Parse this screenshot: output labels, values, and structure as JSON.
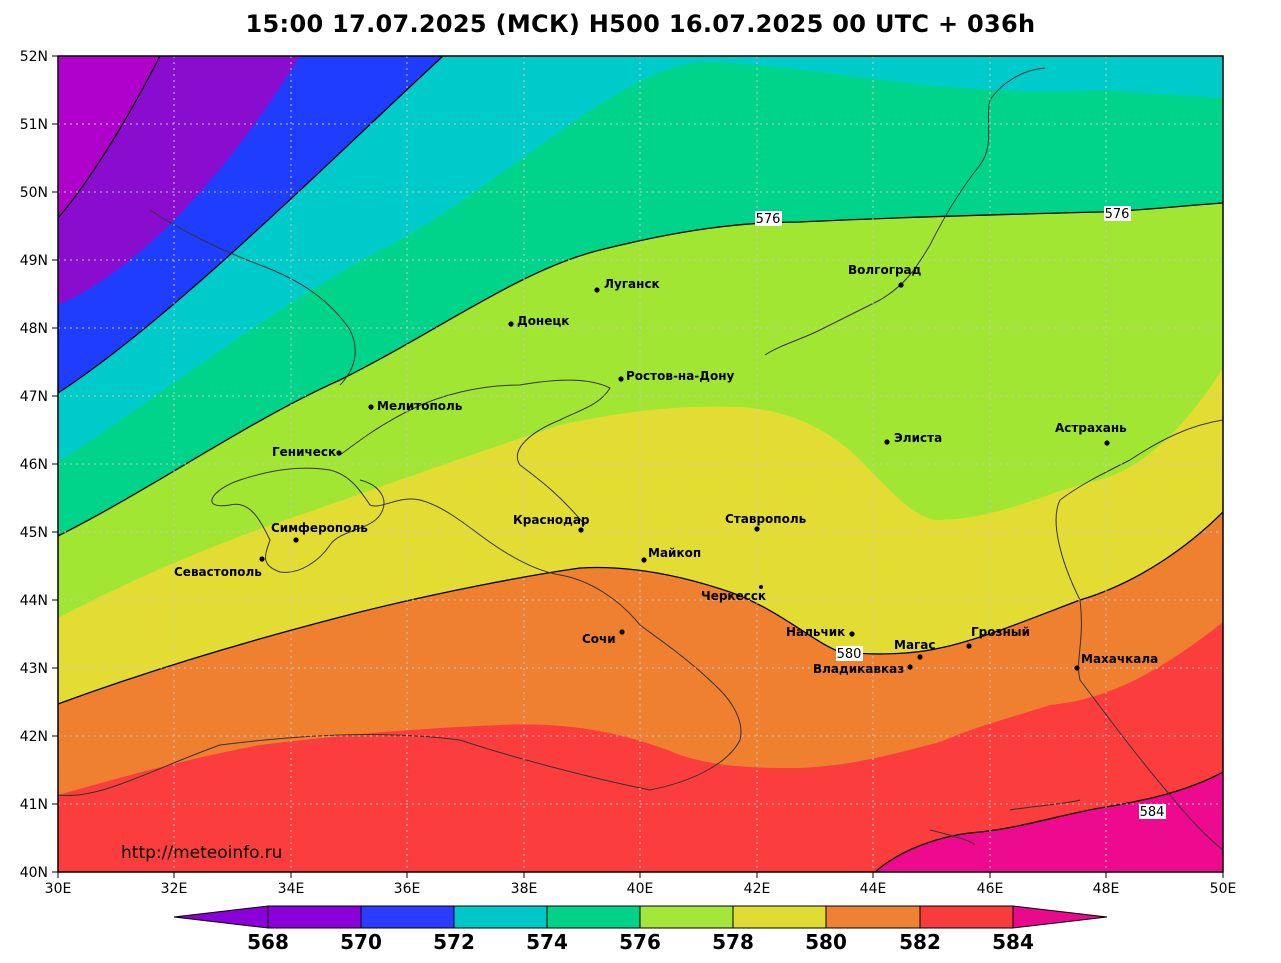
{
  "title": "15:00 17.07.2025 (МСК) H500  16.07.2025 00 UTC + 036h",
  "source_url": "http://meteoinfo.ru",
  "axes": {
    "lat_labels": [
      "52N",
      "51N",
      "50N",
      "49N",
      "48N",
      "47N",
      "46N",
      "45N",
      "44N",
      "43N",
      "42N",
      "41N",
      "40N"
    ],
    "lon_labels": [
      "30E",
      "32E",
      "34E",
      "36E",
      "38E",
      "40E",
      "42E",
      "44E",
      "46E",
      "48E",
      "50E"
    ]
  },
  "palette": {
    "fill_568": "#8a0ccf",
    "fill_570": "#1f3dff",
    "fill_572": "#00cbcb",
    "fill_574": "#00d48b",
    "fill_576": "#a2e634",
    "fill_578": "#e3dd33",
    "fill_580": "#ef8030",
    "fill_582": "#fb3d3d",
    "fill_584": "#ee0a8f",
    "fill_566": "#b000cb"
  },
  "colorbar": {
    "labels": [
      "568",
      "570",
      "572",
      "574",
      "576",
      "578",
      "580",
      "582",
      "584"
    ],
    "colors": [
      "#8a00d8",
      "#2a3cff",
      "#00c8c8",
      "#00d28a",
      "#a4e63a",
      "#e0dc34",
      "#ee8232",
      "#f83c3c",
      "#e80a8c"
    ]
  },
  "contour_labels": [
    "576",
    "576",
    "580",
    "584"
  ],
  "cities": [
    {
      "name": "Волгоград"
    },
    {
      "name": "Луганск"
    },
    {
      "name": "Донецк"
    },
    {
      "name": "Ростов-на-Дону"
    },
    {
      "name": "Мелитополь"
    },
    {
      "name": "Геническ"
    },
    {
      "name": "Элиста"
    },
    {
      "name": "Астрахань"
    },
    {
      "name": "Симферополь"
    },
    {
      "name": "Краснодар"
    },
    {
      "name": "Ставрополь"
    },
    {
      "name": "Севастополь"
    },
    {
      "name": "Майкоп"
    },
    {
      "name": "Черкесск"
    },
    {
      "name": "Нальчик"
    },
    {
      "name": "Сочи"
    },
    {
      "name": "Магас"
    },
    {
      "name": "Грозный"
    },
    {
      "name": "Владикавказ"
    },
    {
      "name": "Махачкала"
    }
  ]
}
